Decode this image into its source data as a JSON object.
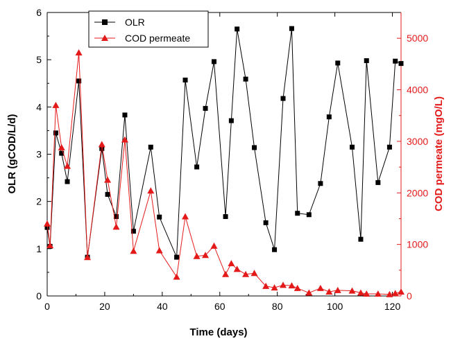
{
  "chart_data": {
    "type": "line",
    "title": "",
    "xlabel": "Time (days)",
    "ylabel_left": "OLR (gCOD/L/d)",
    "ylabel_right": "COD permeate (mgO/L)",
    "xlim": [
      0,
      123
    ],
    "ylim_left": [
      0,
      6
    ],
    "ylim_right": [
      0,
      5500
    ],
    "x_ticks": [
      0,
      20,
      40,
      60,
      80,
      100,
      120
    ],
    "y_left_ticks": [
      0,
      1,
      2,
      3,
      4,
      5,
      6
    ],
    "y_right_ticks": [
      0,
      1000,
      2000,
      3000,
      4000,
      5000
    ],
    "grid": false,
    "legend_position": "top-left",
    "series": [
      {
        "name": "OLR",
        "axis": "left",
        "color": "#000000",
        "marker": "square",
        "x": [
          0,
          1,
          3,
          5,
          7,
          11,
          14,
          19,
          21,
          24,
          27,
          30,
          36,
          39,
          45,
          48,
          52,
          55,
          58,
          62,
          64,
          66,
          69,
          72,
          76,
          79,
          82,
          85,
          87,
          91,
          95,
          98,
          101,
          106,
          109,
          111,
          115,
          119,
          121,
          123
        ],
        "y": [
          1.45,
          1.05,
          3.45,
          3.02,
          2.42,
          4.55,
          0.82,
          3.12,
          2.15,
          1.68,
          3.83,
          1.37,
          3.15,
          1.67,
          0.82,
          4.57,
          2.73,
          3.97,
          4.96,
          1.68,
          3.71,
          5.65,
          4.59,
          3.14,
          1.55,
          0.98,
          4.18,
          5.66,
          1.75,
          1.72,
          2.38,
          3.79,
          4.93,
          3.15,
          1.2,
          4.98,
          2.4,
          3.15,
          4.97,
          4.92
        ]
      },
      {
        "name": "COD permeate",
        "axis": "right",
        "color": "#e41a1a",
        "marker": "triangle",
        "x": [
          0,
          1,
          3,
          5,
          7,
          11,
          14,
          19,
          21,
          24,
          27,
          30,
          36,
          39,
          45,
          48,
          52,
          55,
          58,
          62,
          64,
          66,
          69,
          72,
          76,
          79,
          82,
          85,
          87,
          91,
          95,
          98,
          101,
          106,
          109,
          111,
          115,
          119,
          121,
          123
        ],
        "y": [
          1400,
          980,
          3700,
          2880,
          2520,
          4720,
          750,
          2940,
          2250,
          1340,
          3030,
          870,
          2040,
          880,
          370,
          1540,
          770,
          790,
          970,
          420,
          630,
          520,
          420,
          440,
          190,
          160,
          210,
          200,
          150,
          60,
          150,
          80,
          110,
          100,
          60,
          40,
          40,
          30,
          50,
          80
        ]
      }
    ]
  }
}
